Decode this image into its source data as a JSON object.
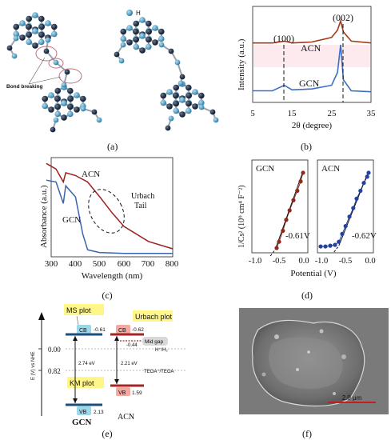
{
  "panel_a": {
    "label": "(a)",
    "legend_h": "H",
    "bond_label": "Bond breaking"
  },
  "panel_b": {
    "label": "(b)",
    "ylabel": "Intensity (a.u.)",
    "xlabel": "2θ (degree)",
    "peak1": "(100)",
    "peak2": "(002)",
    "series1": "ACN",
    "series2": "GCN",
    "ticks": [
      "5",
      "15",
      "25",
      "35"
    ]
  },
  "panel_c": {
    "label": "(c)",
    "ylabel": "Absorbance (a.u.)",
    "xlabel": "Wavelength (nm)",
    "series1": "ACN",
    "series2": "GCN",
    "urbach1": "Urbach",
    "urbach2": "Tail",
    "ticks": [
      "300",
      "400",
      "500",
      "600",
      "700",
      "800"
    ]
  },
  "panel_d": {
    "label": "(d)",
    "ylabel": "1/Cs² (10⁹ cm⁴ F⁻²)",
    "xlabel": "Potential (V)",
    "left_title": "GCN",
    "right_title": "ACN",
    "left_value": "-0.61V",
    "right_value": "-0.62V",
    "ticks": [
      "-1.0",
      "-0.5",
      "0.0"
    ]
  },
  "panel_e": {
    "label": "(e)",
    "ylabel": "E (V) vs NHE",
    "ms_plot": "MS plot",
    "km_plot": "KM plot",
    "urbach_plot": "Urbach plot",
    "mid_gap": "Mid gap",
    "cb": "CB",
    "vb": "VB",
    "cb_gcn": "-0.61",
    "cb_acn": "-0.62",
    "vb_gcn": "2.13",
    "vb_acn": "1.59",
    "gap_gcn": "2.74 eV",
    "gap_acn": "2.21 eV",
    "mid_value": "-0.44",
    "h_label": "H⁺/H₂",
    "teoa_label": "TEOA⁺/TEOA",
    "y0": "0.00",
    "y1": "0.82",
    "gcn": "GCN",
    "acn": "ACN"
  },
  "panel_f": {
    "label": "(f)",
    "scale": "2.0 μm"
  },
  "chart_data": [
    {
      "type": "line",
      "title": "",
      "xlabel": "2θ (degree)",
      "ylabel": "Intensity (a.u.)",
      "xlim": [
        5,
        35
      ],
      "series": [
        {
          "name": "ACN",
          "x": [
            5,
            10,
            13,
            15,
            20,
            25,
            26.5,
            27.3,
            28,
            30,
            35
          ],
          "values": [
            0.62,
            0.62,
            0.64,
            0.62,
            0.63,
            0.68,
            0.76,
            0.86,
            0.74,
            0.64,
            0.62
          ]
        },
        {
          "name": "GCN",
          "x": [
            5,
            10,
            13,
            15,
            20,
            25,
            26.5,
            27.3,
            28,
            30,
            35
          ],
          "values": [
            0.1,
            0.1,
            0.16,
            0.11,
            0.12,
            0.16,
            0.3,
            0.6,
            0.22,
            0.1,
            0.09
          ]
        }
      ]
    },
    {
      "type": "line",
      "title": "",
      "xlabel": "Wavelength (nm)",
      "ylabel": "Absorbance (a.u.)",
      "xlim": [
        280,
        800
      ],
      "series": [
        {
          "name": "ACN",
          "x": [
            280,
            320,
            350,
            360,
            400,
            450,
            500,
            550,
            600,
            700,
            800
          ],
          "values": [
            0.98,
            0.92,
            0.78,
            0.88,
            0.85,
            0.78,
            0.62,
            0.45,
            0.3,
            0.14,
            0.06
          ]
        },
        {
          "name": "GCN",
          "x": [
            280,
            320,
            350,
            360,
            400,
            430,
            450,
            500,
            600,
            800
          ],
          "values": [
            0.8,
            0.78,
            0.55,
            0.74,
            0.62,
            0.22,
            0.05,
            0.02,
            0.01,
            0.01
          ]
        }
      ]
    },
    {
      "type": "scatter",
      "title": "GCN",
      "xlabel": "Potential (V)",
      "ylabel": "1/Cs² (10⁹ cm⁴ F⁻²)",
      "xlim": [
        -1.1,
        0.05
      ],
      "series": [
        {
          "name": "",
          "x": [
            -0.55,
            -0.5,
            -0.42,
            -0.35,
            -0.28,
            -0.2,
            -0.12,
            -0.05,
            0.0
          ],
          "values": [
            0.02,
            0.1,
            0.24,
            0.38,
            0.5,
            0.63,
            0.75,
            0.87,
            0.98
          ]
        }
      ]
    },
    {
      "type": "scatter",
      "title": "ACN",
      "xlabel": "Potential (V)",
      "ylabel": "",
      "xlim": [
        -1.1,
        0.05
      ],
      "series": [
        {
          "name": "",
          "x": [
            -1.0,
            -0.9,
            -0.8,
            -0.7,
            -0.62,
            -0.55,
            -0.48,
            -0.4,
            -0.32,
            -0.25,
            -0.17,
            -0.1,
            -0.03,
            0.0
          ],
          "values": [
            0.04,
            0.04,
            0.05,
            0.06,
            0.1,
            0.2,
            0.3,
            0.42,
            0.53,
            0.65,
            0.75,
            0.85,
            0.93,
            0.98
          ]
        }
      ]
    }
  ]
}
